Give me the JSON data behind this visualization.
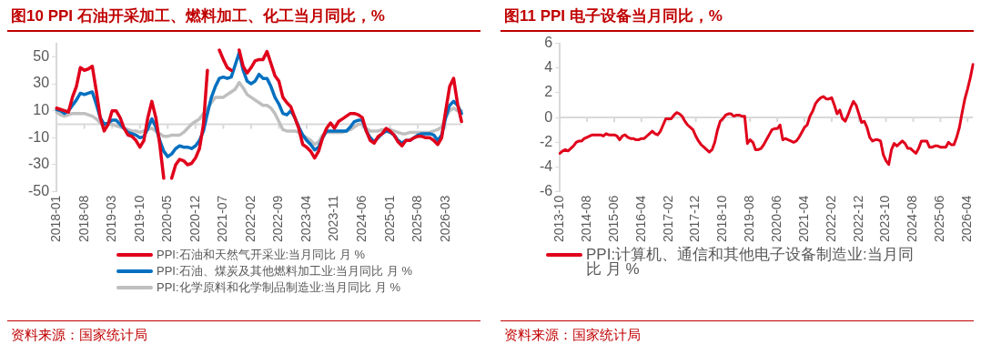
{
  "chart_data": [
    {
      "type": "line",
      "title": "图10  PPI 石油开采加工、燃料加工、化工当月同比，%",
      "categories": [
        "2018-01",
        null,
        null,
        null,
        null,
        null,
        null,
        "2018-08",
        null,
        null,
        null,
        null,
        null,
        null,
        "2019-03",
        null,
        null,
        null,
        null,
        null,
        null,
        "2019-10",
        null,
        null,
        null,
        null,
        null,
        null,
        "2020-05",
        null,
        null,
        null,
        null,
        null,
        null,
        "2020-12",
        null,
        null,
        null,
        null,
        null,
        null,
        "2021-07",
        null,
        null,
        null,
        null,
        null,
        null,
        "2022-02",
        null,
        null,
        null,
        null,
        null,
        null,
        "2022-09",
        null,
        null,
        null,
        null,
        null,
        null,
        "2023-04",
        null,
        null,
        null,
        null,
        null,
        null,
        "2023-11",
        null,
        null,
        null,
        null,
        null,
        null,
        "2024-06",
        null,
        null,
        null,
        null,
        null,
        null,
        "2025-01",
        null,
        null,
        null,
        null,
        null,
        null,
        "2025-08",
        null,
        null,
        null,
        null,
        null,
        null,
        "2026-03",
        null,
        null,
        null,
        null
      ],
      "series": [
        {
          "name": "PPI:石油和天然气开采业:当月同比 月 %",
          "color": "#e0001b",
          "values": [
            12,
            11,
            10,
            9,
            20,
            28,
            42,
            40,
            41,
            43,
            25,
            5,
            -5,
            0,
            10,
            10,
            5,
            -3,
            -8,
            -9,
            -12,
            -17,
            -12,
            5,
            17,
            5,
            -15,
            -40,
            null,
            -40,
            -30,
            -26,
            -27,
            -30,
            -29,
            -25,
            -18,
            0,
            40,
            null,
            null,
            55,
            48,
            42,
            40,
            null,
            55,
            43,
            38,
            42,
            47,
            48,
            48,
            54,
            45,
            36,
            32,
            20,
            16,
            13,
            5,
            -3,
            -15,
            -17,
            -20,
            -25,
            -20,
            -10,
            -3,
            1,
            -3,
            2,
            4,
            6,
            8,
            8,
            7,
            5,
            -5,
            -12,
            -14,
            -9,
            -7,
            -3,
            -5,
            -8,
            -13,
            -16,
            -12,
            -12,
            -10,
            -9,
            -9,
            -10,
            -10,
            -12,
            -15,
            -10,
            10,
            28,
            34,
            15,
            2
          ]
        },
        {
          "name": "PPI:石油、煤炭及其他燃料加工业:当月同比 月 %",
          "color": "#0070c0",
          "values": [
            11,
            10,
            8,
            10,
            14,
            18,
            23,
            22,
            23,
            24,
            15,
            5,
            0,
            1,
            3,
            3,
            0,
            -3,
            -6,
            -7,
            -8,
            -10,
            -9,
            -3,
            4,
            -2,
            -12,
            -20,
            -24,
            -22,
            -18,
            -16,
            -17,
            -17,
            -18,
            -16,
            -12,
            -5,
            8,
            20,
            28,
            34,
            35,
            34,
            35,
            44,
            53,
            40,
            32,
            30,
            32,
            37,
            34,
            34,
            28,
            20,
            15,
            8,
            7,
            10,
            5,
            -2,
            -8,
            -12,
            -15,
            -19,
            -17,
            -10,
            -5,
            -5,
            -5,
            -5,
            -5,
            -5,
            -2,
            2,
            3,
            3,
            -5,
            -10,
            -13,
            -10,
            -7,
            -5,
            -6,
            -8,
            -12,
            -14,
            -12,
            -12,
            -10,
            -8,
            -7,
            -7,
            -7,
            -8,
            -12,
            -8,
            5,
            14,
            17,
            14,
            8
          ]
        },
        {
          "name": "PPI:化学原料和化学制品制造业:当月同比 月 %",
          "color": "#bfbfbf",
          "values": [
            9,
            7,
            6,
            7,
            8,
            8,
            8,
            8,
            7,
            6,
            4,
            1,
            -1,
            0,
            0,
            -1,
            -2,
            -3,
            -4,
            -5,
            -5,
            -6,
            -5,
            -4,
            -3,
            -5,
            -7,
            -9,
            -9,
            -8,
            -8,
            -8,
            -6,
            -3,
            0,
            2,
            4,
            8,
            12,
            16,
            20,
            20,
            20,
            22,
            24,
            26,
            31,
            27,
            22,
            20,
            18,
            16,
            14,
            14,
            12,
            8,
            2,
            -4,
            -5,
            -5,
            -5,
            -6,
            -8,
            -10,
            -12,
            -15,
            -13,
            -8,
            -6,
            -6,
            -6,
            -6,
            -6,
            -5,
            -4,
            -2,
            0,
            0,
            -3,
            -5,
            -5,
            -5,
            -4,
            -4,
            -4,
            -5,
            -6,
            -7,
            -7,
            -6,
            -6,
            -6,
            -6,
            -6,
            -6,
            -5,
            -4,
            -2,
            5,
            10,
            12,
            10,
            10
          ]
        }
      ],
      "ylim": [
        -50,
        60
      ],
      "yticks": [
        50,
        30,
        10,
        -10,
        -30,
        -50
      ],
      "legend": "bottom",
      "annotations": [
        "资料来源：国家统计局"
      ]
    },
    {
      "type": "line",
      "title": "图11  PPI 电子设备当月同比，%",
      "categories": [
        "2013-10",
        null,
        null,
        null,
        null,
        null,
        null,
        null,
        null,
        null,
        "2014-08",
        null,
        null,
        null,
        null,
        null,
        null,
        null,
        null,
        null,
        "2015-06",
        null,
        null,
        null,
        null,
        null,
        null,
        null,
        null,
        null,
        "2016-04",
        null,
        null,
        null,
        null,
        null,
        null,
        null,
        null,
        null,
        "2017-02",
        null,
        null,
        null,
        null,
        null,
        null,
        null,
        null,
        null,
        "2017-12",
        null,
        null,
        null,
        null,
        null,
        null,
        null,
        null,
        null,
        "2018-10",
        null,
        null,
        null,
        null,
        null,
        null,
        null,
        null,
        null,
        "2019-08",
        null,
        null,
        null,
        null,
        null,
        null,
        null,
        null,
        null,
        "2020-06",
        null,
        null,
        null,
        null,
        null,
        null,
        null,
        null,
        null,
        "2021-04",
        null,
        null,
        null,
        null,
        null,
        null,
        null,
        null,
        null,
        "2022-02",
        null,
        null,
        null,
        null,
        null,
        null,
        null,
        null,
        null,
        "2022-12",
        null,
        null,
        null,
        null,
        null,
        null,
        null,
        null,
        null,
        "2023-10",
        null,
        null,
        null,
        null,
        null,
        null,
        null,
        null,
        null,
        "2024-08",
        null,
        null,
        null,
        null,
        null,
        null,
        null,
        null,
        null,
        "2025-06",
        null,
        null,
        null,
        null,
        null,
        null,
        null,
        null,
        null,
        "2026-04",
        null,
        null
      ],
      "series": [
        {
          "name": "PPI:计算机、通信和其他电子设备制造业:当月同比 月 %",
          "color": "#e0001b",
          "values": [
            -2.9,
            -2.7,
            -2.6,
            -2.7,
            -2.5,
            -2.3,
            -2.0,
            -1.9,
            -1.9,
            -1.7,
            -1.6,
            -1.5,
            -1.4,
            -1.4,
            -1.4,
            -1.4,
            -1.5,
            -1.3,
            -1.4,
            -1.4,
            -1.4,
            -1.5,
            -1.8,
            -1.5,
            -1.4,
            -1.6,
            -1.7,
            -1.7,
            -1.8,
            -1.8,
            -1.7,
            -1.7,
            -1.5,
            -1.3,
            -1.1,
            -1.3,
            -1.4,
            -1.1,
            -0.6,
            -0.1,
            -0.1,
            -0.1,
            0.2,
            0.4,
            0.3,
            0.1,
            -0.3,
            -0.6,
            -0.8,
            -1.0,
            -1.5,
            -1.9,
            -2.2,
            -2.4,
            -2.6,
            -2.8,
            -2.6,
            -2.0,
            -1.0,
            -0.3,
            -0.1,
            0.2,
            0.3,
            0.3,
            0.1,
            0.2,
            0.2,
            0.1,
            0.1,
            -2.1,
            -1.8,
            -2.0,
            -2.6,
            -2.6,
            -2.5,
            -2.2,
            -1.8,
            -1.4,
            -1.0,
            -0.9,
            -0.9,
            -0.6,
            -1.8,
            -1.7,
            -1.8,
            -1.9,
            -2.0,
            -1.9,
            -1.6,
            -1.2,
            -0.8,
            -0.6,
            0.1,
            0.5,
            1.1,
            1.4,
            1.6,
            1.7,
            1.5,
            1.5,
            1.6,
            1.0,
            0.3,
            0.6,
            -0.1,
            -0.3,
            0.2,
            0.8,
            1.3,
            1.0,
            0.3,
            -0.4,
            -0.3,
            -0.8,
            -1.6,
            -1.9,
            -1.8,
            -1.8,
            -1.9,
            -3.0,
            -3.5,
            -3.8,
            -2.6,
            -2.1,
            -2.3,
            -2.1,
            -1.9,
            -2.1,
            -2.5,
            -2.5,
            -2.7,
            -2.9,
            -2.5,
            -1.9,
            -1.9,
            -1.9,
            -2.4,
            -2.4,
            -2.3,
            -2.3,
            -2.4,
            -2.4,
            -2.4,
            -2.0,
            -2.2,
            -2.2,
            -1.6,
            -0.8,
            0.4,
            1.5,
            2.3,
            3.2,
            4.3
          ]
        }
      ],
      "ylim": [
        -6,
        6
      ],
      "yticks": [
        6,
        4,
        2,
        0,
        -2,
        -4,
        -6
      ],
      "legend": "bottom",
      "annotations": [
        "资料来源：国家统计局"
      ]
    }
  ]
}
